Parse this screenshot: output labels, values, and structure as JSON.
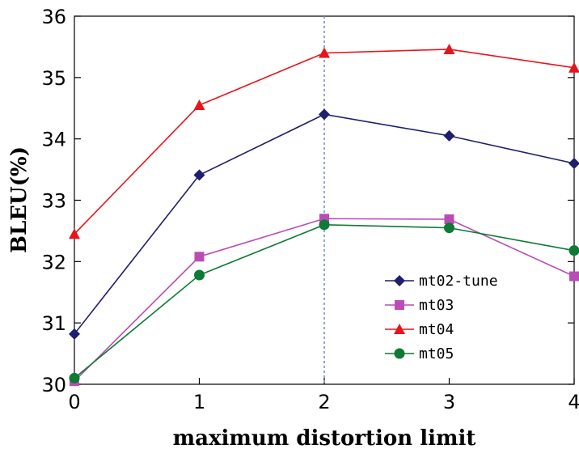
{
  "chart_data": {
    "type": "line",
    "title": "",
    "xlabel": "maximum distortion limit",
    "ylabel": "BLEU(%)",
    "x": [
      0,
      1,
      2,
      3,
      4
    ],
    "xlim": [
      0,
      4
    ],
    "ylim": [
      30,
      36
    ],
    "xticks": [
      "0",
      "1",
      "2",
      "3",
      "4"
    ],
    "yticks": [
      "30",
      "31",
      "32",
      "33",
      "34",
      "35",
      "36"
    ],
    "grid": false,
    "reference_line_x": 2,
    "legend_position": "right",
    "series": [
      {
        "name": "mt02-tune",
        "values": [
          30.82,
          33.41,
          34.4,
          34.05,
          33.6
        ],
        "color": "#1f1f6e",
        "marker": "diamond"
      },
      {
        "name": "mt03",
        "values": [
          30.05,
          32.08,
          32.7,
          32.69,
          31.76
        ],
        "color": "#b94db5",
        "marker": "square"
      },
      {
        "name": "mt04",
        "values": [
          32.45,
          34.55,
          35.4,
          35.46,
          35.16
        ],
        "color": "#e8141c",
        "marker": "triangle"
      },
      {
        "name": "mt05",
        "values": [
          30.1,
          31.78,
          32.6,
          32.55,
          32.18
        ],
        "color": "#0d7a35",
        "marker": "circle"
      }
    ]
  }
}
